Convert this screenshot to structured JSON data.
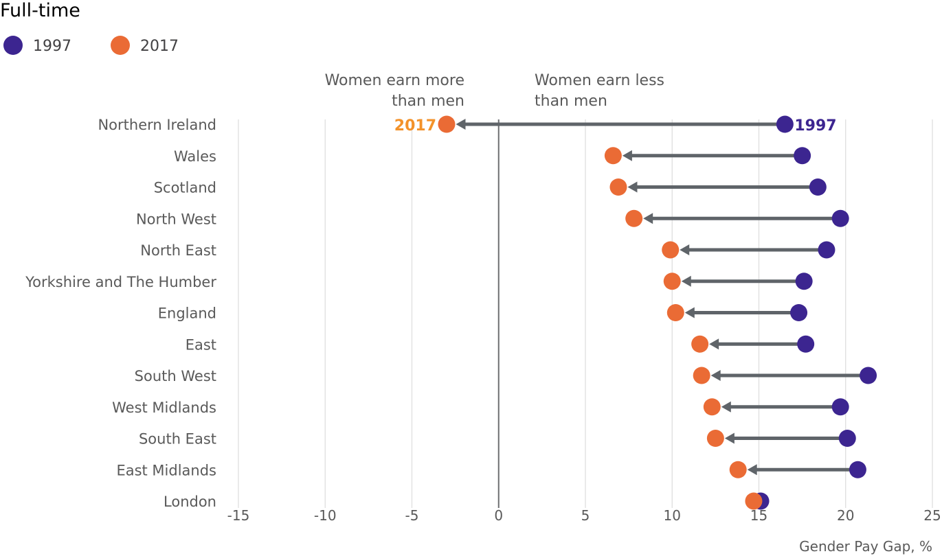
{
  "chart_data": {
    "type": "dumbbell",
    "title": "Full-time",
    "xlabel": "Gender Pay Gap, %",
    "xlim": [
      -15,
      25
    ],
    "xticks": [
      -15,
      -10,
      -5,
      0,
      5,
      10,
      15,
      20,
      25
    ],
    "legend": {
      "placement": "top-left",
      "entries": [
        "1997",
        "2017"
      ]
    },
    "colors": {
      "1997": "#3c2590",
      "2017": "#ea6b35",
      "label2017": "#f3922a",
      "arrow": "#5f6469"
    },
    "annotations": {
      "left": [
        "Women earn more",
        "than men"
      ],
      "right": [
        "Women earn less",
        "than men"
      ]
    },
    "end_labels": {
      "start": "1997",
      "end": "2017"
    },
    "grid": true,
    "categories": [
      "Northern Ireland",
      "Wales",
      "Scotland",
      "North West",
      "North East",
      "Yorkshire and The Humber",
      "England",
      "East",
      "South West",
      "West Midlands",
      "South East",
      "East Midlands",
      "London"
    ],
    "series": [
      {
        "name": "1997",
        "values": [
          16.5,
          17.5,
          18.4,
          19.7,
          18.9,
          17.6,
          17.3,
          17.7,
          21.3,
          19.7,
          20.1,
          20.7,
          15.1
        ]
      },
      {
        "name": "2017",
        "values": [
          -3.0,
          6.6,
          6.9,
          7.8,
          9.9,
          10.0,
          10.2,
          11.6,
          11.7,
          12.3,
          12.5,
          13.8,
          14.7
        ]
      }
    ]
  }
}
